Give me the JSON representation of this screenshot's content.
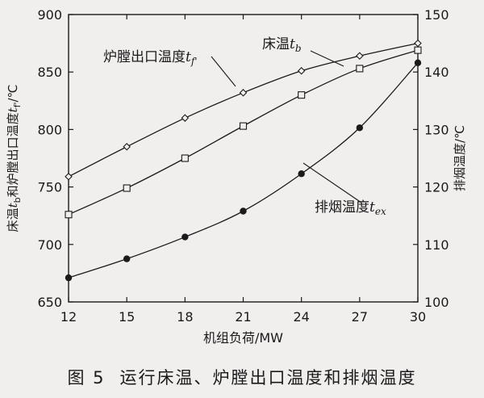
{
  "chart_data": {
    "type": "line",
    "x": [
      12,
      15,
      18,
      21,
      24,
      27,
      30
    ],
    "xlabel": "机组负荷/MW",
    "xlim": [
      12,
      30
    ],
    "xticks": [
      12,
      15,
      18,
      21,
      24,
      27,
      30
    ],
    "ylabel_left": "床温t_b和炉膛出口温度t_f'/℃",
    "ylabel_left_parts": {
      "a": "床温",
      "b": "t",
      "b_sub": "b",
      "c": "和炉膛出口温度",
      "d": "t",
      "d_sub": "f'",
      "e": "/℃"
    },
    "ylim_left": [
      650,
      900
    ],
    "yticks_left": [
      650,
      700,
      750,
      800,
      850,
      900
    ],
    "ylabel_right": "排烟温度/℃",
    "ylim_right": [
      100,
      150
    ],
    "yticks_right": [
      100,
      110,
      120,
      130,
      140,
      150
    ],
    "grid": false,
    "series": [
      {
        "name": "炉膛出口温度t_f'",
        "axis": "left",
        "marker": "diamond",
        "values": [
          759,
          785,
          810,
          832,
          851,
          864,
          875
        ]
      },
      {
        "name": "床温t_b",
        "axis": "left",
        "marker": "square",
        "values": [
          726,
          749,
          775,
          803,
          830,
          853,
          869
        ]
      },
      {
        "name": "排烟温度t_ex",
        "axis": "right",
        "marker": "circle",
        "values": [
          104.2,
          107.5,
          111.3,
          115.8,
          122.3,
          130.3,
          141.6
        ]
      }
    ],
    "annotations": [
      {
        "series": 0,
        "base": "炉膛出口温度",
        "var": "t",
        "sub": "f'"
      },
      {
        "series": 1,
        "base": "床温",
        "var": "t",
        "sub": "b"
      },
      {
        "series": 2,
        "base": "排烟温度",
        "var": "t",
        "sub": "ex"
      }
    ]
  },
  "caption": {
    "number": "图 5",
    "text": "运行床温、炉膛出口温度和排烟温度"
  }
}
